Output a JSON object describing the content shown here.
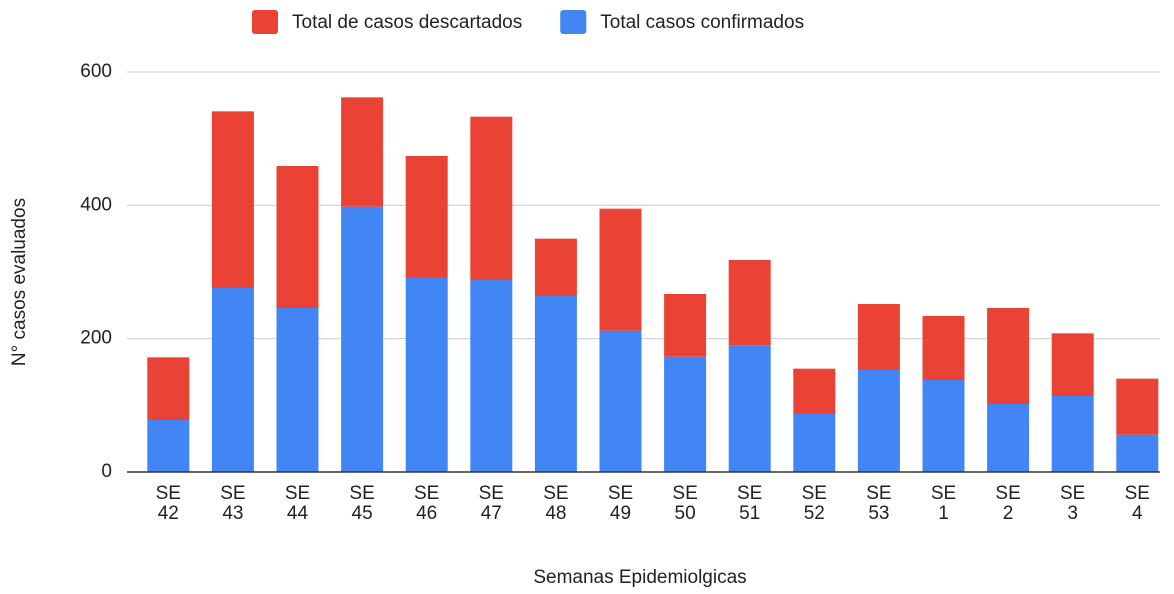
{
  "chart_data": {
    "type": "stacked_bar",
    "x_label": "Semanas Epidemiolgicas",
    "y_label": "N° casos evaluados",
    "categories": [
      "SE 42",
      "SE 43",
      "SE 44",
      "SE 45",
      "SE 46",
      "SE 47",
      "SE 48",
      "SE 49",
      "SE 50",
      "SE 51",
      "SE 52",
      "SE 53",
      "SE 1",
      "SE 2",
      "SE 3",
      "SE 4"
    ],
    "series": [
      {
        "name": "Total de casos descartados",
        "color": "#ea4335",
        "values": [
          94,
          265,
          213,
          164,
          183,
          245,
          86,
          183,
          94,
          128,
          68,
          99,
          96,
          144,
          94,
          84
        ]
      },
      {
        "name": "Total casos confirmados",
        "color": "#4285f4",
        "values": [
          78,
          276,
          246,
          398,
          291,
          288,
          264,
          212,
          173,
          190,
          87,
          153,
          138,
          102,
          114,
          56
        ]
      }
    ],
    "ylim": [
      0,
      600
    ],
    "yticks": [
      0,
      200,
      400,
      600
    ],
    "grid": true,
    "legend": "top"
  }
}
